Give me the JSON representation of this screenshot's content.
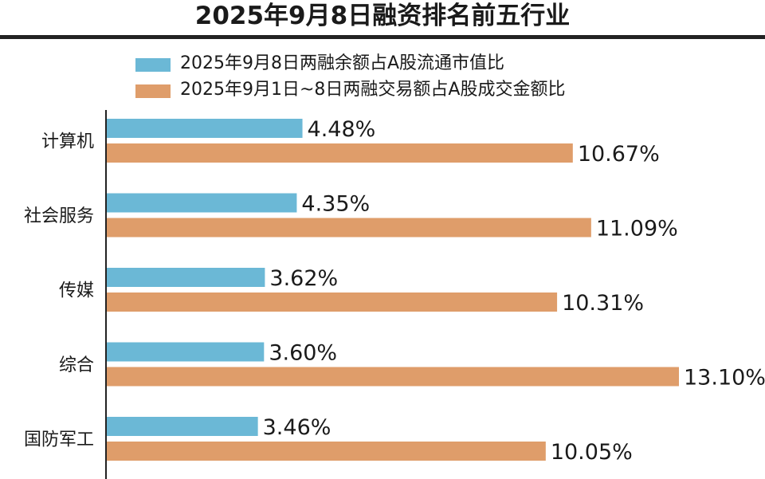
{
  "chart_data": {
    "type": "bar",
    "orientation": "horizontal",
    "title": "2025年9月8日融资排名前五行业",
    "categories": [
      "计算机",
      "社会服务",
      "传媒",
      "综合",
      "国防军工"
    ],
    "series": [
      {
        "name": "2025年9月8日两融余额占A股流通市值比",
        "color": "#6bb8d6",
        "values": [
          4.48,
          4.35,
          3.62,
          3.6,
          3.46
        ],
        "labels": [
          "4.48%",
          "4.35%",
          "3.62%",
          "3.60%",
          "3.46%"
        ]
      },
      {
        "name": "2025年9月1日~8日两融交易额占A股成交金额比",
        "color": "#df9d6a",
        "values": [
          10.67,
          11.09,
          10.31,
          13.1,
          10.05
        ],
        "labels": [
          "10.67%",
          "11.09%",
          "10.31%",
          "13.10%",
          "10.05%"
        ]
      }
    ],
    "unit": "%",
    "legend_position": "top",
    "grid": false,
    "xlim": [
      0,
      13.1
    ]
  }
}
